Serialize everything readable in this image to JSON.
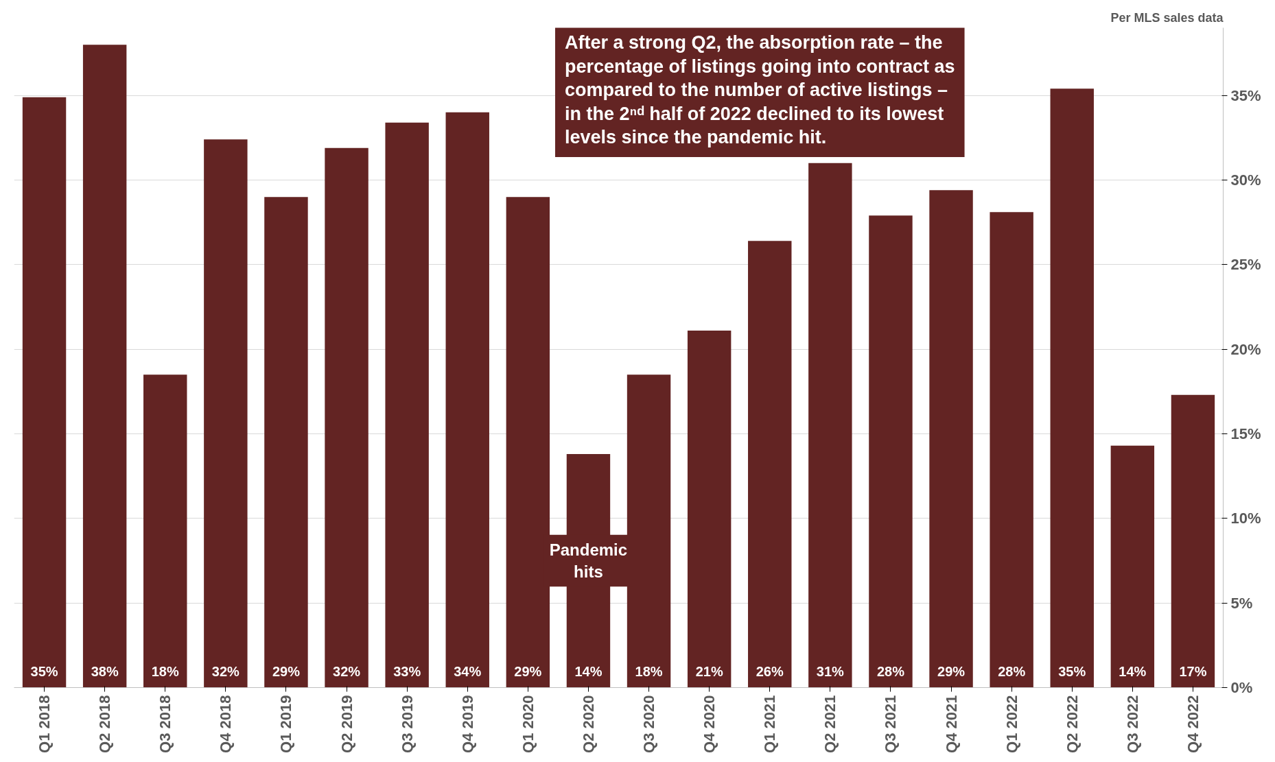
{
  "chart_data": {
    "type": "bar",
    "categories": [
      "Q1 2018",
      "Q2 2018",
      "Q3 2018",
      "Q4 2018",
      "Q1 2019",
      "Q2 2019",
      "Q3 2019",
      "Q4 2019",
      "Q1 2020",
      "Q2 2020",
      "Q3 2020",
      "Q4 2020",
      "Q1 2021",
      "Q2 2021",
      "Q3 2021",
      "Q4 2021",
      "Q1 2022",
      "Q2 2022",
      "Q3 2022",
      "Q4 2022"
    ],
    "values": [
      34.9,
      38.0,
      18.5,
      32.4,
      29.0,
      31.9,
      33.4,
      34.0,
      29.0,
      13.8,
      18.5,
      21.1,
      26.4,
      31.0,
      27.9,
      29.4,
      28.1,
      35.4,
      14.3,
      17.3
    ],
    "value_labels": [
      "35%",
      "38%",
      "18%",
      "32%",
      "29%",
      "32%",
      "33%",
      "34%",
      "29%",
      "14%",
      "18%",
      "21%",
      "26%",
      "31%",
      "28%",
      "29%",
      "28%",
      "35%",
      "14%",
      "17%"
    ],
    "color": "#632423",
    "ylim": [
      0,
      39
    ],
    "yticks": [
      {
        "value": 0,
        "label": "0%"
      },
      {
        "value": 5,
        "label": "5%"
      },
      {
        "value": 10,
        "label": "10%"
      },
      {
        "value": 15,
        "label": "15%"
      },
      {
        "value": 20,
        "label": "20%"
      },
      {
        "value": 25,
        "label": "25%"
      },
      {
        "value": 30,
        "label": "30%"
      },
      {
        "value": 35,
        "label": "35%"
      }
    ],
    "grid": "y",
    "annotations": [
      "Per MLS sales data",
      "After a strong Q2, the absorption rate – the\npercentage of listings going into contract as\ncompared to the number of active listings –\nin the 2ⁿᵈ half of 2022 declined to its lowest\nlevels since the pandemic hit.",
      "Pandemic\nhits"
    ]
  }
}
